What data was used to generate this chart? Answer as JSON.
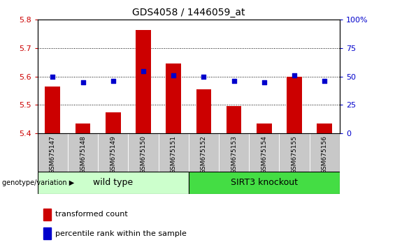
{
  "title": "GDS4058 / 1446059_at",
  "samples": [
    "GSM675147",
    "GSM675148",
    "GSM675149",
    "GSM675150",
    "GSM675151",
    "GSM675152",
    "GSM675153",
    "GSM675154",
    "GSM675155",
    "GSM675156"
  ],
  "transformed_count": [
    5.565,
    5.435,
    5.475,
    5.765,
    5.645,
    5.555,
    5.495,
    5.435,
    5.6,
    5.435
  ],
  "percentile_rank": [
    50,
    45,
    46,
    55,
    51,
    50,
    46,
    45,
    51,
    46
  ],
  "ylim_left": [
    5.4,
    5.8
  ],
  "ylim_right": [
    0,
    100
  ],
  "yticks_left": [
    5.4,
    5.5,
    5.6,
    5.7,
    5.8
  ],
  "yticks_right": [
    0,
    25,
    50,
    75,
    100
  ],
  "bar_color": "#cc0000",
  "dot_color": "#0000cc",
  "bar_width": 0.5,
  "wild_type_label": "wild type",
  "knockout_label": "SIRT3 knockout",
  "group_label": "genotype/variation",
  "legend_bar_label": "transformed count",
  "legend_dot_label": "percentile rank within the sample",
  "tick_bg_color": "#c8c8c8",
  "wild_type_bg": "#ccffcc",
  "knockout_bg": "#44dd44",
  "right_tick_labels": [
    "0",
    "25",
    "50",
    "75",
    "100%"
  ]
}
